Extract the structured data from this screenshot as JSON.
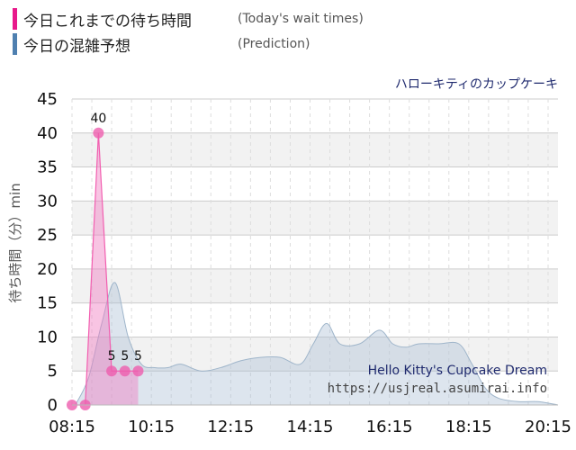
{
  "legend": {
    "today": {
      "label": "今日これまでの待ち時間",
      "sub": "(Today's wait times)",
      "color": "#e8198b"
    },
    "prediction": {
      "label": "今日の混雑予想",
      "sub": "(Prediction)",
      "color": "#4f80b0"
    }
  },
  "chart_data": {
    "type": "area",
    "subtitle": "ハローキティのカップケーキ",
    "ylabel": "待ち時間（分）min",
    "ylim": [
      0,
      45
    ],
    "yticks": [
      0,
      5,
      10,
      15,
      20,
      25,
      30,
      35,
      40,
      45
    ],
    "xlim": [
      "08:15",
      "20:30"
    ],
    "xticks": [
      "08:15",
      "10:15",
      "12:15",
      "14:15",
      "16:15",
      "18:15",
      "20:15"
    ],
    "watermark": [
      "Hello Kitty's Cupcake Dream",
      "https://usjreal.asumirai.info"
    ],
    "series": [
      {
        "key": "today",
        "color": "#e8198b",
        "x": [
          "08:15",
          "08:35",
          "08:55",
          "09:15",
          "09:35",
          "09:55"
        ],
        "y": [
          0,
          0,
          40,
          5,
          5,
          5
        ],
        "labels": [
          "",
          "",
          "40",
          "5",
          "5",
          "5"
        ]
      },
      {
        "key": "prediction",
        "color": "#4f80b0",
        "x": [
          "08:20",
          "08:40",
          "09:00",
          "09:20",
          "09:40",
          "10:00",
          "10:20",
          "10:40",
          "11:00",
          "11:30",
          "12:00",
          "12:30",
          "13:00",
          "13:30",
          "14:00",
          "14:20",
          "14:40",
          "15:00",
          "15:30",
          "16:00",
          "16:20",
          "16:40",
          "17:00",
          "17:30",
          "18:00",
          "18:20",
          "18:40",
          "19:00",
          "19:30",
          "20:00",
          "20:30"
        ],
        "y": [
          0,
          4,
          12,
          18,
          10,
          6,
          5.5,
          5.5,
          6,
          5,
          5.5,
          6.5,
          7,
          7,
          6,
          9,
          12,
          9,
          9,
          11,
          9,
          8.5,
          9,
          9,
          9,
          6,
          2.5,
          1,
          0.5,
          0.5,
          0
        ]
      }
    ]
  }
}
